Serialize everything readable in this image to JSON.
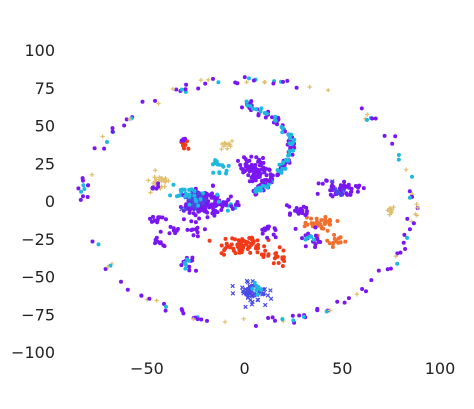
{
  "chart_data": {
    "type": "scatter",
    "title": "",
    "xlabel": "",
    "ylabel": "",
    "xlim": [
      -95,
      100
    ],
    "ylim": [
      -100,
      100
    ],
    "grid": false,
    "legend": "none",
    "x_ticks": [
      -50,
      0,
      50,
      100
    ],
    "y_ticks": [
      100,
      75,
      50,
      25,
      0,
      -25,
      -50,
      -75,
      -100
    ],
    "x_tick_labels": [
      "−50",
      "0",
      "50",
      "100"
    ],
    "y_tick_labels": [
      "100",
      "75",
      "50",
      "25",
      "0",
      "−25",
      "−50",
      "−75",
      "−100"
    ],
    "colors": {
      "purple": "#7a17f0",
      "blue": "#4a4ae6",
      "cyan": "#1eb8e0",
      "tan": "#e0c070",
      "red": "#f03a1a",
      "orange": "#f07030"
    },
    "clusters": [
      {
        "color": "purple",
        "center": [
          -22,
          -2
        ],
        "spread": [
          5,
          4
        ],
        "count": 140
      },
      {
        "color": "blue",
        "center": [
          -26,
          0
        ],
        "spread": [
          3,
          3
        ],
        "count": 40
      },
      {
        "color": "cyan",
        "center": [
          -30,
          4
        ],
        "spread": [
          6,
          4
        ],
        "count": 20
      },
      {
        "color": "purple",
        "center": [
          5,
          20
        ],
        "spread": [
          4,
          3.5
        ],
        "count": 90
      },
      {
        "color": "cyan",
        "center": [
          -12,
          22
        ],
        "spread": [
          3,
          3
        ],
        "count": 15
      },
      {
        "color": "tan",
        "center": [
          -43,
          12
        ],
        "spread": [
          3,
          3
        ],
        "count": 28
      },
      {
        "color": "purple",
        "center": [
          -45,
          10
        ],
        "spread": [
          1.5,
          1.5
        ],
        "count": 6
      },
      {
        "color": "tan",
        "center": [
          -10,
          37
        ],
        "spread": [
          2,
          1.5
        ],
        "count": 12
      },
      {
        "color": "red",
        "center": [
          -31,
          37
        ],
        "spread": [
          1.2,
          1.2
        ],
        "count": 8
      },
      {
        "color": "purple",
        "center": [
          -31,
          40
        ],
        "spread": [
          1,
          1
        ],
        "count": 5
      },
      {
        "color": "blue",
        "center": [
          5,
          -60
        ],
        "spread": [
          4,
          3
        ],
        "count": 60
      },
      {
        "color": "cyan",
        "center": [
          5,
          -58
        ],
        "spread": [
          3,
          2
        ],
        "count": 8
      },
      {
        "color": "red",
        "center": [
          0,
          -30
        ],
        "spread": [
          8,
          3
        ],
        "count": 65
      },
      {
        "color": "red",
        "center": [
          17,
          -37
        ],
        "spread": [
          3,
          3
        ],
        "count": 18
      },
      {
        "color": "orange",
        "center": [
          38,
          -15
        ],
        "spread": [
          4,
          2.5
        ],
        "count": 35
      },
      {
        "color": "orange",
        "center": [
          47,
          -27
        ],
        "spread": [
          2,
          2
        ],
        "count": 14
      },
      {
        "color": "purple",
        "center": [
          50,
          8
        ],
        "spread": [
          5,
          3
        ],
        "count": 45
      },
      {
        "color": "blue",
        "center": [
          48,
          6
        ],
        "spread": [
          2,
          2
        ],
        "count": 10
      },
      {
        "color": "purple",
        "center": [
          28,
          -7
        ],
        "spread": [
          3,
          2
        ],
        "count": 18
      },
      {
        "color": "purple",
        "center": [
          33,
          -25
        ],
        "spread": [
          3,
          3
        ],
        "count": 18
      },
      {
        "color": "cyan",
        "center": [
          33,
          -23
        ],
        "spread": [
          1.5,
          1.5
        ],
        "count": 5
      },
      {
        "color": "purple",
        "center": [
          -45,
          -12
        ],
        "spread": [
          2,
          2
        ],
        "count": 12
      },
      {
        "color": "purple",
        "center": [
          -38,
          -20
        ],
        "spread": [
          3,
          2
        ],
        "count": 8
      },
      {
        "color": "purple",
        "center": [
          -25,
          -20
        ],
        "spread": [
          2.5,
          2.5
        ],
        "count": 10
      },
      {
        "color": "purple",
        "center": [
          -45,
          -27
        ],
        "spread": [
          2,
          2
        ],
        "count": 8
      },
      {
        "color": "purple",
        "center": [
          -30,
          -40
        ],
        "spread": [
          3,
          3
        ],
        "count": 10
      },
      {
        "color": "cyan",
        "center": [
          -30,
          -42
        ],
        "spread": [
          2,
          2
        ],
        "count": 5
      },
      {
        "color": "tan",
        "center": [
          74,
          -7
        ],
        "spread": [
          1.5,
          1.5
        ],
        "count": 10
      },
      {
        "color": "purple",
        "center": [
          -8,
          -2
        ],
        "spread": [
          4,
          2
        ],
        "count": 15
      },
      {
        "color": "purple",
        "center": [
          14,
          -20
        ],
        "spread": [
          3,
          2
        ],
        "count": 12
      }
    ],
    "curves": [
      {
        "color": "purple",
        "points": [
          [
            0,
            65
          ],
          [
            15,
            55
          ],
          [
            25,
            40
          ],
          [
            22,
            25
          ],
          [
            12,
            12
          ],
          [
            5,
            5
          ]
        ],
        "count": 90,
        "jitter": 1.2
      },
      {
        "color": "cyan",
        "points": [
          [
            0,
            65
          ],
          [
            15,
            55
          ],
          [
            25,
            40
          ],
          [
            22,
            25
          ],
          [
            12,
            12
          ],
          [
            5,
            5
          ]
        ],
        "count": 60,
        "jitter": 0.8
      },
      {
        "color": "cyan",
        "points": [
          [
            -35,
            10
          ],
          [
            -25,
            5
          ],
          [
            -15,
            -2
          ],
          [
            -5,
            -5
          ]
        ],
        "count": 25,
        "jitter": 1
      }
    ],
    "ring": {
      "center": [
        2,
        0
      ],
      "radius": [
        82,
        88
      ],
      "count": 150,
      "colors": [
        "purple",
        "purple",
        "purple",
        "tan",
        "cyan"
      ]
    }
  }
}
